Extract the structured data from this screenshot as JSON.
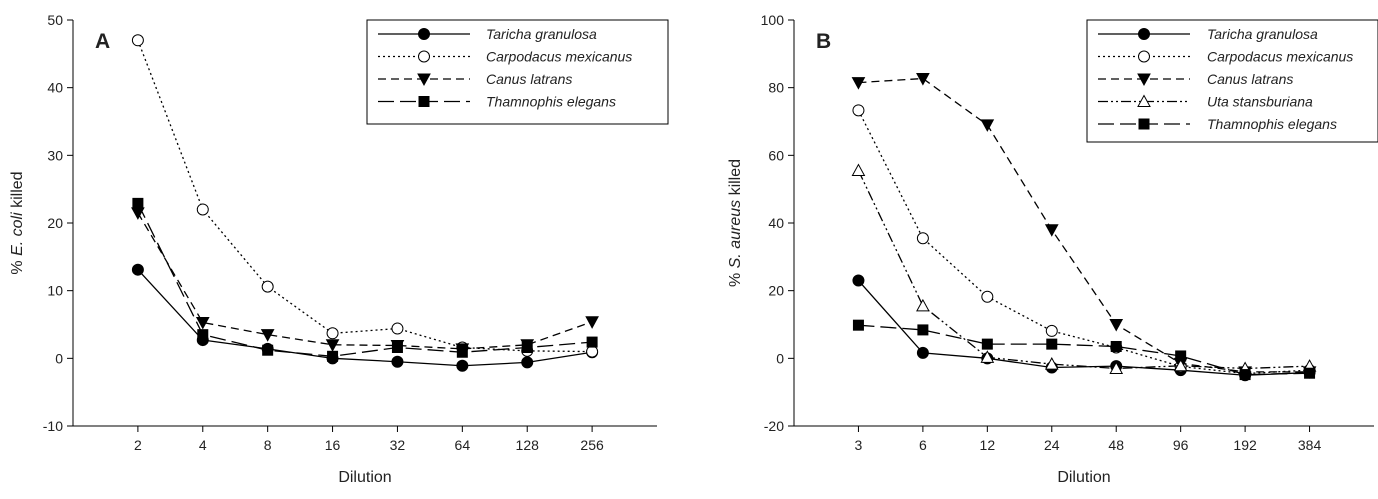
{
  "chart_data": [
    {
      "type": "line",
      "panel_label": "A",
      "xlabel": "Dilution",
      "ylabel_parts": [
        "% ",
        "E. coli",
        " killed"
      ],
      "x": [
        2,
        4,
        8,
        16,
        32,
        64,
        128,
        256
      ],
      "x_tick_labels": [
        "2",
        "4",
        "8",
        "16",
        "32",
        "64",
        "128",
        "256"
      ],
      "x_scale": "log2",
      "ylim": [
        -10,
        50
      ],
      "y_ticks": [
        -10,
        0,
        10,
        20,
        30,
        40,
        50
      ],
      "legend_position": "top-right",
      "series": [
        {
          "name": "Taricha granulosa",
          "marker": "circle-filled",
          "dash": "solid",
          "values": [
            13.1,
            2.7,
            1.4,
            0.0,
            -0.5,
            -1.1,
            -0.6,
            0.9
          ]
        },
        {
          "name": "Carpodacus mexicanus",
          "marker": "circle-open",
          "dash": "dotted",
          "values": [
            47.0,
            22.0,
            10.6,
            3.7,
            4.4,
            1.6,
            1.1,
            1.0
          ]
        },
        {
          "name": "Canus latrans",
          "marker": "triangle-down-filled",
          "dash": "dashed",
          "values": [
            21.5,
            5.3,
            3.5,
            2.0,
            1.9,
            1.4,
            2.0,
            5.4
          ]
        },
        {
          "name": "Thamnophis elegans",
          "marker": "square-filled",
          "dash": "longdash",
          "values": [
            22.9,
            3.5,
            1.2,
            0.3,
            1.6,
            0.9,
            1.6,
            2.4
          ]
        }
      ]
    },
    {
      "type": "line",
      "panel_label": "B",
      "xlabel": "Dilution",
      "ylabel_parts": [
        "% ",
        "S. aureus",
        " killed"
      ],
      "x": [
        3,
        6,
        12,
        24,
        48,
        96,
        192,
        384
      ],
      "x_tick_labels": [
        "3",
        "6",
        "12",
        "24",
        "48",
        "96",
        "192",
        "384"
      ],
      "x_scale": "log2",
      "ylim": [
        -20,
        100
      ],
      "y_ticks": [
        -20,
        0,
        20,
        40,
        60,
        80,
        100
      ],
      "legend_position": "top-right",
      "series": [
        {
          "name": "Taricha granulosa",
          "marker": "circle-filled",
          "dash": "solid",
          "values": [
            23.0,
            1.6,
            0.0,
            -2.7,
            -2.3,
            -3.5,
            -5.0,
            -4.2
          ]
        },
        {
          "name": "Carpodacus mexicanus",
          "marker": "circle-open",
          "dash": "dotted",
          "values": [
            73.3,
            35.5,
            18.2,
            8.1,
            3.2,
            -2.4,
            -4.5,
            -3.5
          ]
        },
        {
          "name": "Canus latrans",
          "marker": "triangle-down-filled",
          "dash": "dashed",
          "values": [
            81.5,
            82.7,
            69.0,
            38.0,
            10.0,
            -1.5,
            -4.0,
            -4.0
          ]
        },
        {
          "name": "Uta stansburiana",
          "marker": "triangle-up-open",
          "dash": "dashdotdot",
          "values": [
            55.5,
            15.5,
            0.3,
            -1.7,
            -3.0,
            -2.2,
            -3.0,
            -2.3
          ]
        },
        {
          "name": "Thamnophis elegans",
          "marker": "square-filled",
          "dash": "longdash",
          "values": [
            9.8,
            8.4,
            4.2,
            4.2,
            3.5,
            0.7,
            -4.8,
            -4.4
          ]
        }
      ]
    }
  ]
}
